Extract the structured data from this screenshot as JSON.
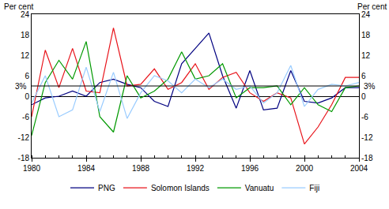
{
  "chart_data": {
    "type": "line",
    "y_label": "Per cent",
    "x": [
      1980,
      1981,
      1982,
      1983,
      1984,
      1985,
      1986,
      1987,
      1988,
      1989,
      1990,
      1991,
      1992,
      1993,
      1994,
      1995,
      1996,
      1997,
      1998,
      1999,
      2000,
      2001,
      2002,
      2003,
      2004
    ],
    "series": [
      {
        "name": "PNG",
        "color": "#000080",
        "values": [
          -2.5,
          -0.5,
          0,
          1.5,
          0,
          4,
          5,
          3.5,
          2.5,
          -1.5,
          -3,
          9.5,
          14,
          18.5,
          6,
          -3.5,
          7.5,
          -4,
          -3.5,
          7.5,
          -1.5,
          -2,
          -0.5,
          2.5,
          2.5
        ]
      },
      {
        "name": "Solomon Islands",
        "color": "#e8141b",
        "values": [
          -6,
          13.5,
          2.5,
          14,
          1.5,
          1,
          20,
          3,
          3.5,
          8,
          2,
          4,
          9.5,
          2,
          5.5,
          7,
          1,
          -1.5,
          1,
          -0.5,
          -14,
          -9,
          -2.5,
          5.5,
          5.5
        ]
      },
      {
        "name": "Vanuatu",
        "color": "#009900",
        "values": [
          -11.5,
          4,
          10.5,
          5,
          16,
          -6,
          -10.5,
          6,
          -0.5,
          1.5,
          5,
          13,
          5,
          6,
          9.5,
          -0.5,
          2.5,
          2.5,
          3,
          -2.5,
          2.5,
          -2.5,
          -4.5,
          2.5,
          3
        ]
      },
      {
        "name": "Fiji",
        "color": "#99ccff",
        "values": [
          -2,
          6,
          -6,
          -4,
          8.5,
          -4.5,
          7,
          -6.5,
          1,
          6,
          4.5,
          1,
          5,
          2.5,
          5,
          2,
          3,
          -2,
          1,
          9,
          -3,
          2,
          3.5,
          3,
          4
        ]
      }
    ],
    "annotations": [
      {
        "y": 3,
        "text": "3%"
      }
    ],
    "xlim": [
      1980,
      2004
    ],
    "xticks": [
      1980,
      1984,
      1988,
      1992,
      1996,
      2000,
      2004
    ],
    "ylim": [
      -18,
      24
    ],
    "yticks": [
      -18,
      -12,
      -6,
      0,
      6,
      12,
      18,
      24
    ],
    "y2lim": [
      -18,
      24
    ],
    "y2ticks": [
      -18,
      -12,
      -6,
      0,
      6,
      12,
      18,
      24
    ],
    "grid": false,
    "legend": "bottom"
  }
}
